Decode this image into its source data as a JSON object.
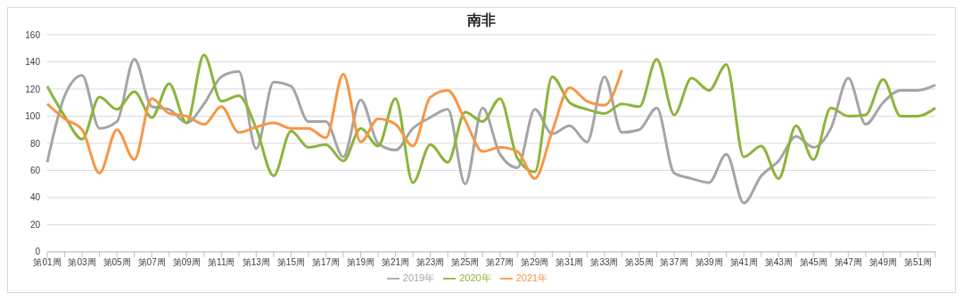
{
  "chart_data": {
    "type": "line",
    "title": "南非",
    "categories": [
      "第01周",
      null,
      "第03周",
      null,
      "第05周",
      null,
      "第07周",
      null,
      "第09周",
      null,
      "第11周",
      null,
      "第13周",
      null,
      "第15周",
      null,
      "第17周",
      null,
      "第19周",
      null,
      "第21周",
      null,
      "第23周",
      null,
      "第25周",
      null,
      "第27周",
      null,
      "第29周",
      null,
      "第31周",
      null,
      "第33周",
      null,
      "第35周",
      null,
      "第37周",
      null,
      "第39周",
      null,
      "第41周",
      null,
      "第43周",
      null,
      "第45周",
      null,
      "第47周",
      null,
      "第49周",
      null,
      "第51周",
      null
    ],
    "series": [
      {
        "name": "2019年",
        "color": "#a5a5a5",
        "values": [
          66,
          115,
          130,
          91,
          96,
          142,
          107,
          105,
          95,
          109,
          129,
          133,
          76,
          125,
          122,
          96,
          96,
          70,
          112,
          80,
          75,
          91,
          99,
          105,
          50,
          106,
          72,
          62,
          105,
          87,
          93,
          81,
          129,
          88,
          90,
          106,
          58,
          54,
          51,
          72,
          36,
          56,
          67,
          85,
          77,
          91,
          128,
          94,
          110,
          119,
          119,
          123
        ]
      },
      {
        "name": "2020年",
        "color": "#8cb43c",
        "values": [
          122,
          100,
          83,
          114,
          105,
          118,
          99,
          124,
          95,
          145,
          111,
          115,
          91,
          56,
          89,
          77,
          79,
          67,
          91,
          78,
          113,
          51,
          79,
          66,
          103,
          96,
          113,
          69,
          59,
          129,
          110,
          105,
          102,
          109,
          107,
          142,
          101,
          128,
          119,
          138,
          70,
          78,
          54,
          93,
          68,
          106,
          100,
          101,
          127,
          100,
          100,
          106
        ]
      },
      {
        "name": "2021年",
        "color": "#f79646",
        "values": [
          109,
          98,
          90,
          58,
          90,
          68,
          113,
          102,
          100,
          94,
          107,
          88,
          92,
          95,
          91,
          91,
          84,
          131,
          81,
          98,
          94,
          78,
          114,
          119,
          97,
          74,
          77,
          74,
          54,
          89,
          121,
          111,
          108,
          134,
          null,
          null,
          null,
          null,
          null,
          null,
          null,
          null,
          null,
          null,
          null,
          null,
          null,
          null,
          null,
          null,
          null,
          null
        ]
      }
    ],
    "ylim": [
      0,
      160
    ],
    "yticks": [
      0,
      20,
      40,
      60,
      80,
      100,
      120,
      140,
      160
    ],
    "grid": "y",
    "legend": "bottom"
  }
}
